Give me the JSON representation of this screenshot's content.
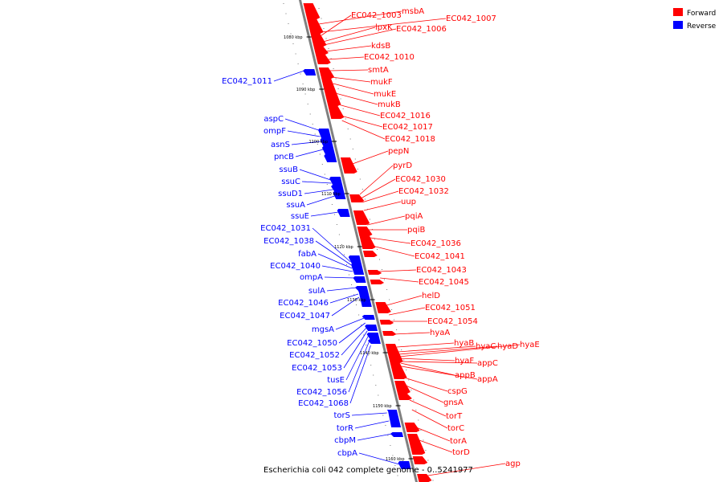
{
  "title": "Escherichia coli 042 complete genome - 0..5241977",
  "legend": [
    {
      "label": "Forward",
      "color": "#ff0000"
    },
    {
      "label": "Reverse",
      "color": "#0000ff"
    }
  ],
  "colors": {
    "forward": "#ff0000",
    "reverse": "#0000ff",
    "backbone": "#808080"
  },
  "ticks": [
    "1080 kbp",
    "1090 kbp",
    "1100 kbp",
    "1110 kbp",
    "1120 kbp",
    "1130 kbp",
    "1140 kbp",
    "1150 kbp",
    "1160 kbp"
  ],
  "forward_genes": [
    "EC042_1003",
    "msbA",
    "EC042_1007",
    "lpxK",
    "EC042_1006",
    "kdsB",
    "EC042_1010",
    "smtA",
    "mukF",
    "mukE",
    "mukB",
    "EC042_1016",
    "EC042_1017",
    "EC042_1018",
    "pepN",
    "pyrD",
    "EC042_1030",
    "EC042_1032",
    "uup",
    "pqiA",
    "pqiB",
    "EC042_1036",
    "EC042_1041",
    "EC042_1043",
    "EC042_1045",
    "helD",
    "EC042_1051",
    "EC042_1054",
    "hyaA",
    "hyaB",
    "hyaC",
    "hyaD",
    "hyaE",
    "hyaF",
    "appC",
    "appB",
    "appA",
    "cspG",
    "gnsA",
    "torT",
    "torC",
    "torA",
    "torD",
    "agp"
  ],
  "reverse_genes": [
    "EC042_1011",
    "aspC",
    "ompF",
    "asnS",
    "pncB",
    "ssuB",
    "ssuC",
    "ssuD1",
    "ssuA",
    "ssuE",
    "EC042_1031",
    "EC042_1038",
    "fabA",
    "EC042_1040",
    "ompA",
    "sulA",
    "EC042_1046",
    "EC042_1047",
    "mgsA",
    "EC042_1050",
    "EC042_1052",
    "EC042_1053",
    "tusE",
    "EC042_1056",
    "EC042_1068",
    "torS",
    "torR",
    "cbpM",
    "cbpA"
  ]
}
